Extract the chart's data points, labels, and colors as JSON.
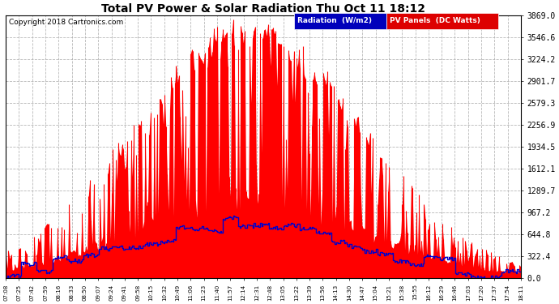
{
  "title": "Total PV Power & Solar Radiation Thu Oct 11 18:12",
  "copyright": "Copyright 2018 Cartronics.com",
  "background_color": "#ffffff",
  "plot_bg_color": "#ffffff",
  "y_ticks": [
    0.0,
    322.4,
    644.8,
    967.2,
    1289.7,
    1612.1,
    1934.5,
    2256.9,
    2579.3,
    2901.7,
    3224.2,
    3546.6,
    3869.0
  ],
  "y_max": 3869.0,
  "grid_color": "#b0b0b0",
  "red_color": "#ff0000",
  "blue_color": "#0000cc",
  "legend_radiation_bg": "#0000bb",
  "legend_pv_bg": "#dd0000",
  "n_points": 400,
  "x_tick_labels": [
    "07:08",
    "07:25",
    "07:42",
    "07:59",
    "08:16",
    "08:33",
    "08:50",
    "09:07",
    "09:24",
    "09:41",
    "09:58",
    "10:15",
    "10:32",
    "10:49",
    "11:06",
    "11:23",
    "11:40",
    "11:57",
    "12:14",
    "12:31",
    "12:48",
    "13:05",
    "13:22",
    "13:39",
    "13:56",
    "14:13",
    "14:30",
    "14:47",
    "15:04",
    "15:21",
    "15:38",
    "15:55",
    "16:12",
    "16:29",
    "16:46",
    "17:03",
    "17:20",
    "17:37",
    "17:54",
    "18:11"
  ]
}
